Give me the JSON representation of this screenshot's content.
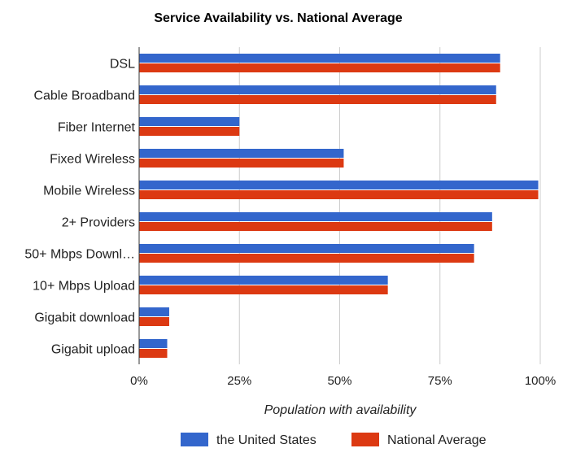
{
  "chart_data": {
    "type": "bar",
    "orientation": "horizontal",
    "title": "Service Availability vs. National Average",
    "xlabel": "Population with availability",
    "ylabel": "",
    "xlim": [
      0,
      100
    ],
    "x_ticks": [
      {
        "value": 0,
        "label": "0%"
      },
      {
        "value": 25,
        "label": "25%"
      },
      {
        "value": 50,
        "label": "50%"
      },
      {
        "value": 75,
        "label": "75%"
      },
      {
        "value": 100,
        "label": "100%"
      }
    ],
    "categories": [
      "DSL",
      "Cable Broadband",
      "Fiber Internet",
      "Fixed Wireless",
      "Mobile Wireless",
      "2+ Providers",
      "50+ Mbps Downl…",
      "10+ Mbps Upload",
      "Gigabit download",
      "Gigabit upload"
    ],
    "series": [
      {
        "name": "the United States",
        "color": "#3366cc",
        "values": [
          90,
          89,
          25,
          51,
          99.5,
          88,
          83.5,
          62,
          7.5,
          7
        ]
      },
      {
        "name": "National Average",
        "color": "#dc3912",
        "values": [
          90,
          89,
          25,
          51,
          99.5,
          88,
          83.5,
          62,
          7.5,
          7
        ]
      }
    ],
    "grid": true,
    "legend_position": "bottom"
  }
}
